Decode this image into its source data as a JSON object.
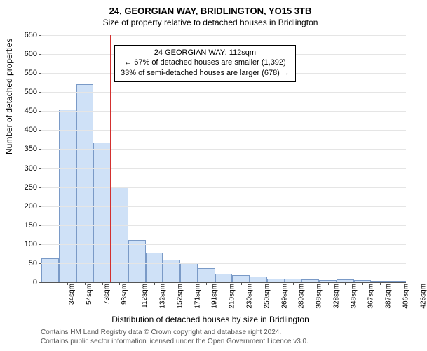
{
  "title": "24, GEORGIAN WAY, BRIDLINGTON, YO15 3TB",
  "subtitle": "Size of property relative to detached houses in Bridlington",
  "ylabel": "Number of detached properties",
  "xlabel": "Distribution of detached houses by size in Bridlington",
  "footer_line1": "Contains HM Land Registry data © Crown copyright and database right 2024.",
  "footer_line2": "Contains public sector information licensed under the Open Government Licence v3.0.",
  "chart": {
    "type": "histogram",
    "ylim": [
      0,
      650
    ],
    "ytick_step": 50,
    "background_color": "#ffffff",
    "grid_color": "#e5e5e5",
    "axis_color": "#555555",
    "bar_fill": "#cfe1f7",
    "bar_border": "#7a9ac7",
    "bar_border_width": 1,
    "label_fontsize": 12,
    "tick_fontsize": 11,
    "xtick_fontsize": 10,
    "title_fontsize": 13,
    "categories": [
      "34sqm",
      "54sqm",
      "73sqm",
      "93sqm",
      "112sqm",
      "132sqm",
      "152sqm",
      "171sqm",
      "191sqm",
      "210sqm",
      "230sqm",
      "250sqm",
      "269sqm",
      "289sqm",
      "308sqm",
      "328sqm",
      "348sqm",
      "367sqm",
      "387sqm",
      "406sqm",
      "426sqm"
    ],
    "values": [
      62,
      455,
      520,
      368,
      250,
      110,
      78,
      60,
      52,
      37,
      23,
      19,
      14,
      10,
      10,
      8,
      5,
      8,
      5,
      3,
      2
    ],
    "reference_line": {
      "index_after_bars": 4,
      "color": "#d3302f",
      "width": 2
    },
    "info_box": {
      "line1": "24 GEORGIAN WAY: 112sqm",
      "line2": "← 67% of detached houses are smaller (1,392)",
      "line3": "33% of semi-detached houses are larger (678) →",
      "border_color": "#000000",
      "bg": "#ffffff",
      "fontsize": 11,
      "left_bar_index": 4.2,
      "top_value": 625
    }
  }
}
